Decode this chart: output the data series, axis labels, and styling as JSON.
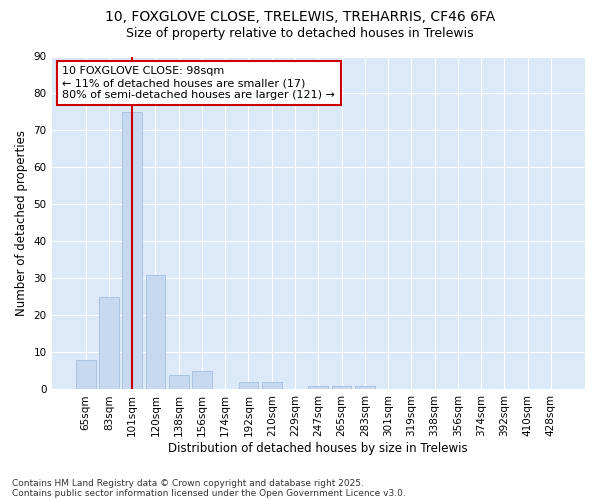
{
  "title_line1": "10, FOXGLOVE CLOSE, TRELEWIS, TREHARRIS, CF46 6FA",
  "title_line2": "Size of property relative to detached houses in Trelewis",
  "xlabel": "Distribution of detached houses by size in Trelewis",
  "ylabel": "Number of detached properties",
  "categories": [
    "65sqm",
    "83sqm",
    "101sqm",
    "120sqm",
    "138sqm",
    "156sqm",
    "174sqm",
    "192sqm",
    "210sqm",
    "229sqm",
    "247sqm",
    "265sqm",
    "283sqm",
    "301sqm",
    "319sqm",
    "338sqm",
    "356sqm",
    "374sqm",
    "392sqm",
    "410sqm",
    "428sqm"
  ],
  "values": [
    8,
    25,
    75,
    31,
    4,
    5,
    0,
    2,
    2,
    0,
    1,
    1,
    1,
    0,
    0,
    0,
    0,
    0,
    0,
    0,
    0
  ],
  "bar_color": "#c6d9f0",
  "bar_edge_color": "#9ab7d9",
  "highlight_index": 2,
  "highlight_line_color": "#cc0000",
  "ylim": [
    0,
    90
  ],
  "yticks": [
    0,
    10,
    20,
    30,
    40,
    50,
    60,
    70,
    80,
    90
  ],
  "annotation_line1": "10 FOXGLOVE CLOSE: 98sqm",
  "annotation_line2": "← 11% of detached houses are smaller (17)",
  "annotation_line3": "80% of semi-detached houses are larger (121) →",
  "annotation_box_color": "#ffffff",
  "annotation_box_edge_color": "#cc0000",
  "footnote_line1": "Contains HM Land Registry data © Crown copyright and database right 2025.",
  "footnote_line2": "Contains public sector information licensed under the Open Government Licence v3.0.",
  "fig_bg_color": "#ffffff",
  "plot_bg_color": "#dce9f8",
  "grid_color": "#ffffff",
  "title_fontsize": 10,
  "subtitle_fontsize": 9,
  "axis_label_fontsize": 8.5,
  "tick_fontsize": 7.5,
  "annotation_fontsize": 8,
  "footnote_fontsize": 6.5
}
